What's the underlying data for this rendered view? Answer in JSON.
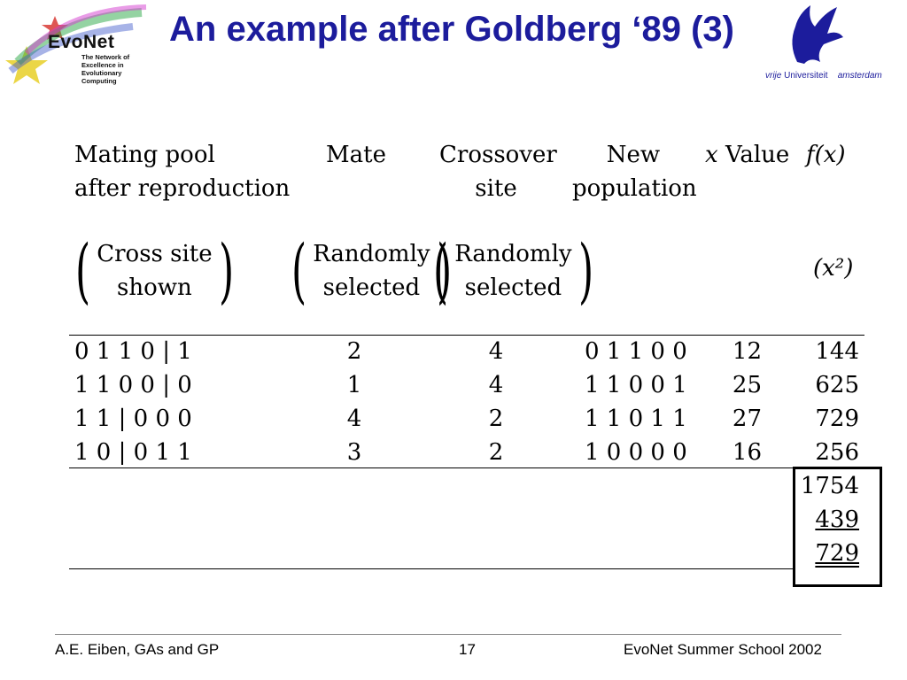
{
  "slide": {
    "title": "An example after Goldberg ‘89 (3)",
    "logos": {
      "evonet_name": "EvoNet",
      "evonet_tagline": "The Network of Excellence in Evolutionary Computing",
      "vu_word1": "vrije",
      "vu_word2": "Universiteit",
      "vu_word3": "amsterdam"
    },
    "table": {
      "headers": {
        "mating_pool": [
          "Mating pool",
          "after reproduction"
        ],
        "mate": "Mate",
        "crossover_site": [
          "Crossover",
          "site"
        ],
        "new_population": [
          "New",
          "population"
        ],
        "x_value_var": "x",
        "x_value_word": "Value",
        "fx": "f(x)"
      },
      "subheaders": {
        "mating_pool": [
          "Cross site",
          "shown"
        ],
        "mate": [
          "Randomly",
          "selected"
        ],
        "crossover_site": [
          "Randomly",
          "selected"
        ],
        "fx": "(x²)"
      },
      "rows": [
        {
          "pool": "0 1 1 0 | 1",
          "mate": "2",
          "site": "4",
          "newpop": "0 1 1 0 0",
          "x": "12",
          "fx": "144"
        },
        {
          "pool": "1 1 0 0 | 0",
          "mate": "1",
          "site": "4",
          "newpop": "1 1 0 0 1",
          "x": "25",
          "fx": "625"
        },
        {
          "pool": "1 1 | 0 0 0",
          "mate": "4",
          "site": "2",
          "newpop": "1 1 0 1 1",
          "x": "27",
          "fx": "729"
        },
        {
          "pool": "1 0 | 0 1 1",
          "mate": "3",
          "site": "2",
          "newpop": "1 0 0 0 0",
          "x": "16",
          "fx": "256"
        }
      ],
      "summary": {
        "sum": "1754",
        "avg": "439",
        "max": "729"
      }
    },
    "footer": {
      "left": "A.E. Eiben, GAs and GP",
      "page": "17",
      "right": "EvoNet Summer School 2002"
    }
  }
}
